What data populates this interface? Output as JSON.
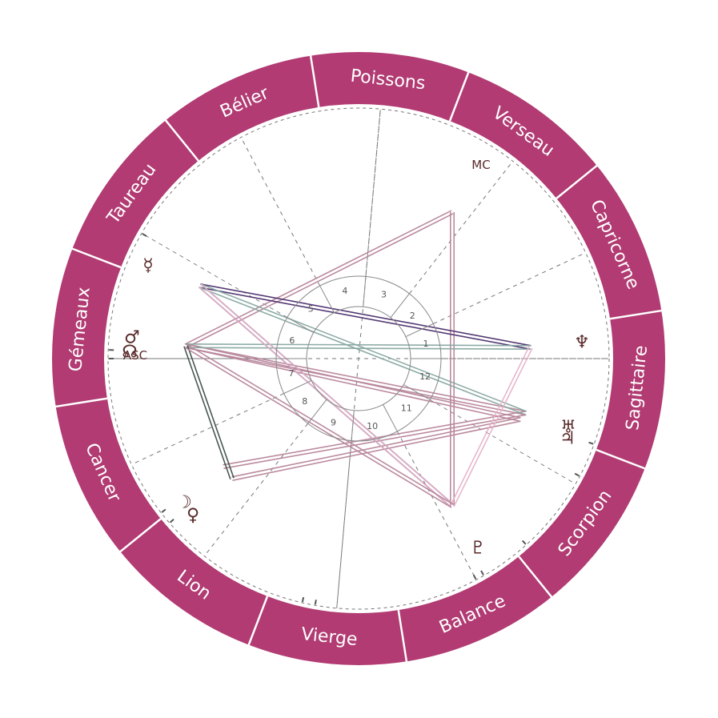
{
  "colors": {
    "ring": "#b13b72",
    "ring_divider": "#ffffff",
    "dashed": "#777777",
    "inner_circle": "#888888",
    "glyph": "#5a2a2a",
    "aspect_colors": [
      "#b7859a",
      "#4a2d6c",
      "#86a7a0",
      "#e6b3c9",
      "#3f4f4a"
    ]
  },
  "zodiac": [
    {
      "name": "Poissons"
    },
    {
      "name": "Verseau"
    },
    {
      "name": "Capricorne"
    },
    {
      "name": "Sagittaire"
    },
    {
      "name": "Scorpion"
    },
    {
      "name": "Balance"
    },
    {
      "name": "Vierge"
    },
    {
      "name": "Lion"
    },
    {
      "name": "Cancer"
    },
    {
      "name": "Gémeaux"
    },
    {
      "name": "Taureau"
    },
    {
      "name": "Bélier"
    }
  ],
  "houses": [
    "1",
    "2",
    "3",
    "4",
    "5",
    "6",
    "7",
    "8",
    "9",
    "10",
    "11",
    "12"
  ],
  "axes": {
    "asc": "ASC",
    "mc": "MC"
  },
  "planets": [
    {
      "id": "mercury",
      "glyph": "☿",
      "icon": "mercury-icon"
    },
    {
      "id": "mars",
      "glyph": "♂",
      "icon": "mars-icon"
    },
    {
      "id": "north-node",
      "glyph": "☊",
      "icon": "north-node-icon"
    },
    {
      "id": "neptune",
      "glyph": "♆",
      "icon": "neptune-icon"
    },
    {
      "id": "uranus",
      "glyph": "♅",
      "icon": "uranus-icon"
    },
    {
      "id": "jupiter",
      "glyph": "♃",
      "icon": "jupiter-icon"
    },
    {
      "id": "moon",
      "glyph": "☽",
      "icon": "moon-icon"
    },
    {
      "id": "venus",
      "glyph": "♀",
      "icon": "venus-icon"
    },
    {
      "id": "pluto",
      "glyph": "♇",
      "icon": "pluto-icon"
    }
  ]
}
